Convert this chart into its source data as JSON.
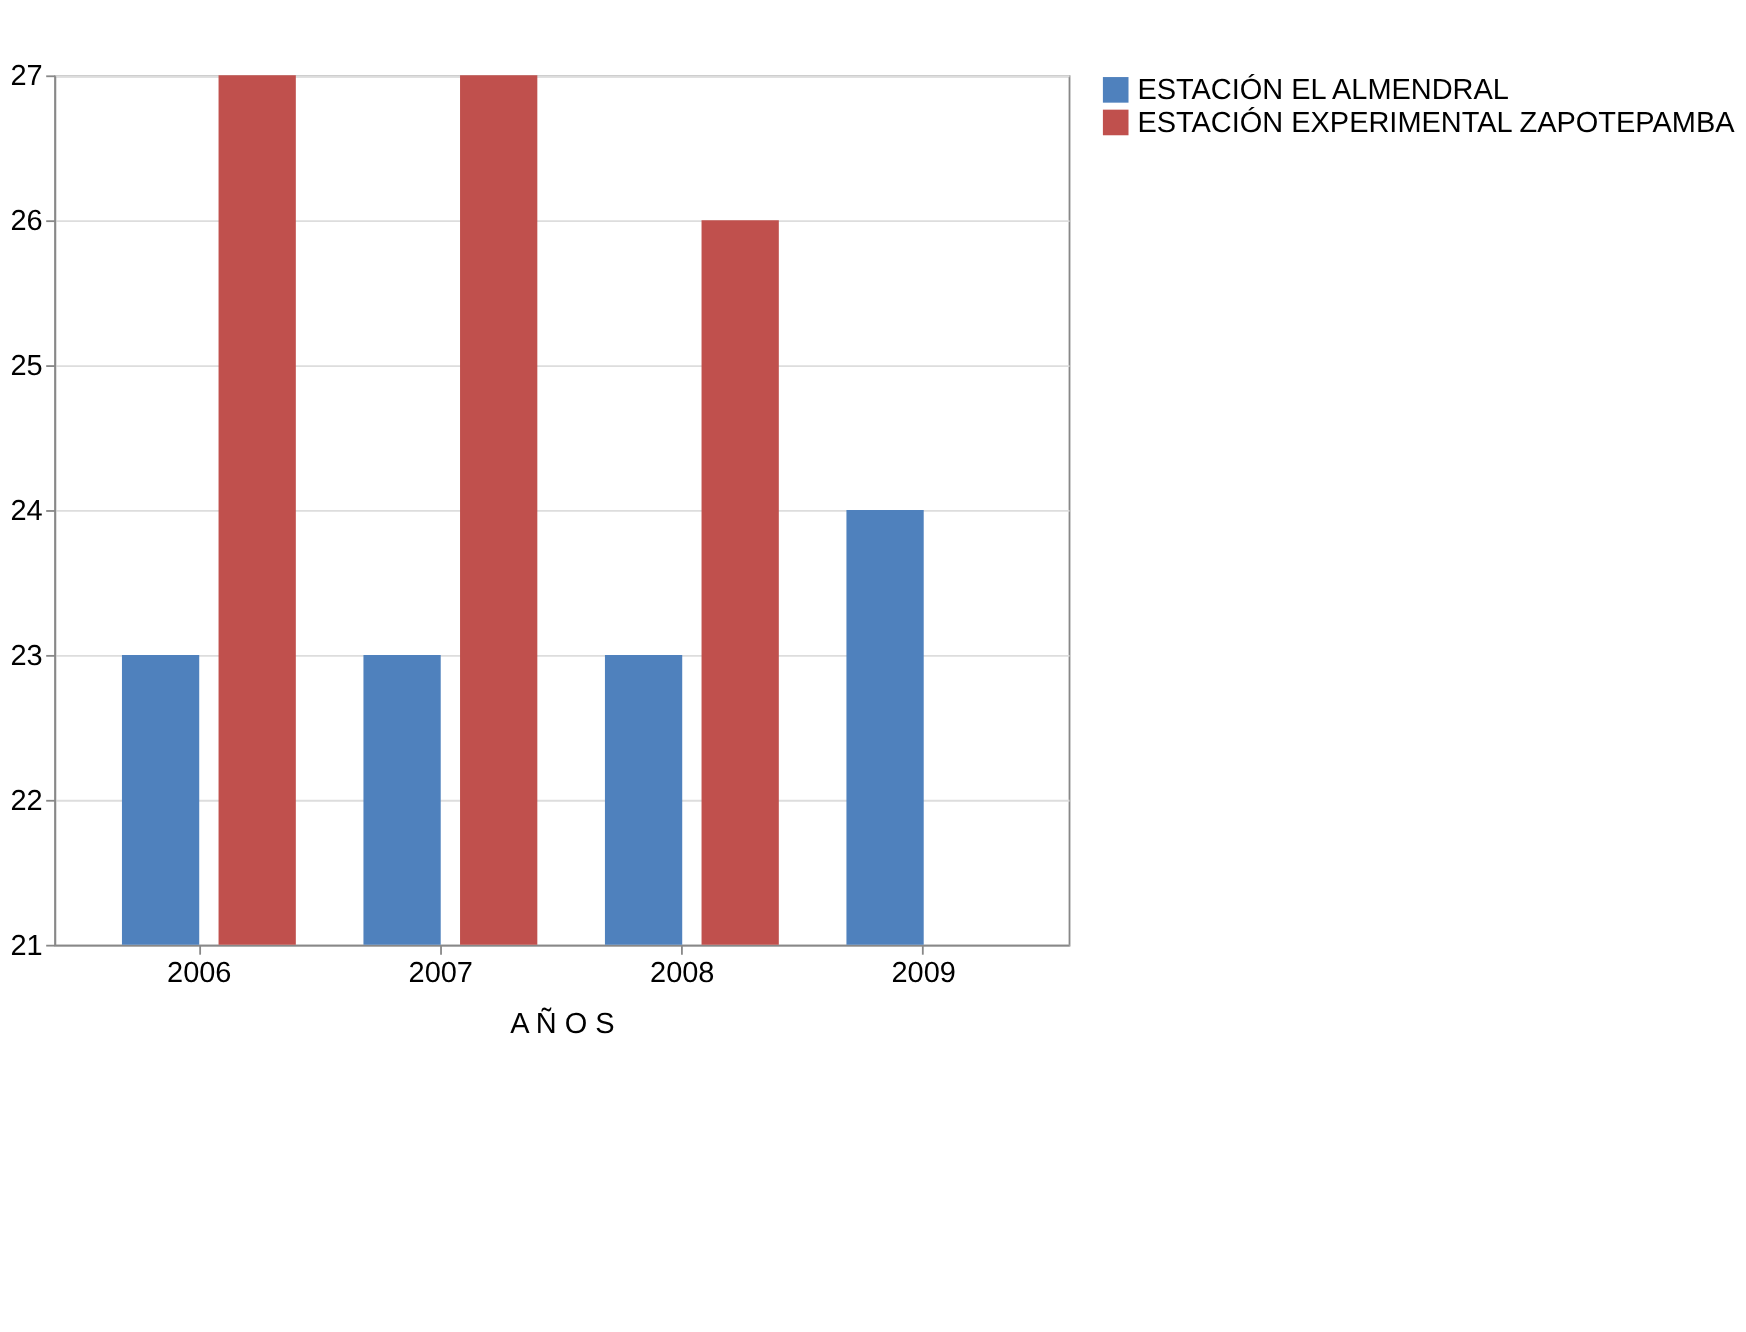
{
  "chart_data": {
    "type": "bar",
    "xlabel": "A Ñ O S",
    "categories": [
      "2006",
      "2007",
      "2008",
      "2009"
    ],
    "series": [
      {
        "name": "ESTACIÓN EL ALMENDRAL",
        "color": "#4f81bd",
        "values": [
          23,
          23,
          23,
          24
        ]
      },
      {
        "name": "ESTACIÓN EXPERIMENTAL ZAPOTEPAMBA",
        "color": "#c0504d",
        "values": [
          27,
          27,
          26,
          null
        ]
      }
    ],
    "ylim": [
      21,
      27
    ],
    "yticks": [
      21,
      22,
      23,
      24,
      25,
      26,
      27
    ],
    "grid": "y",
    "legend": "right"
  }
}
